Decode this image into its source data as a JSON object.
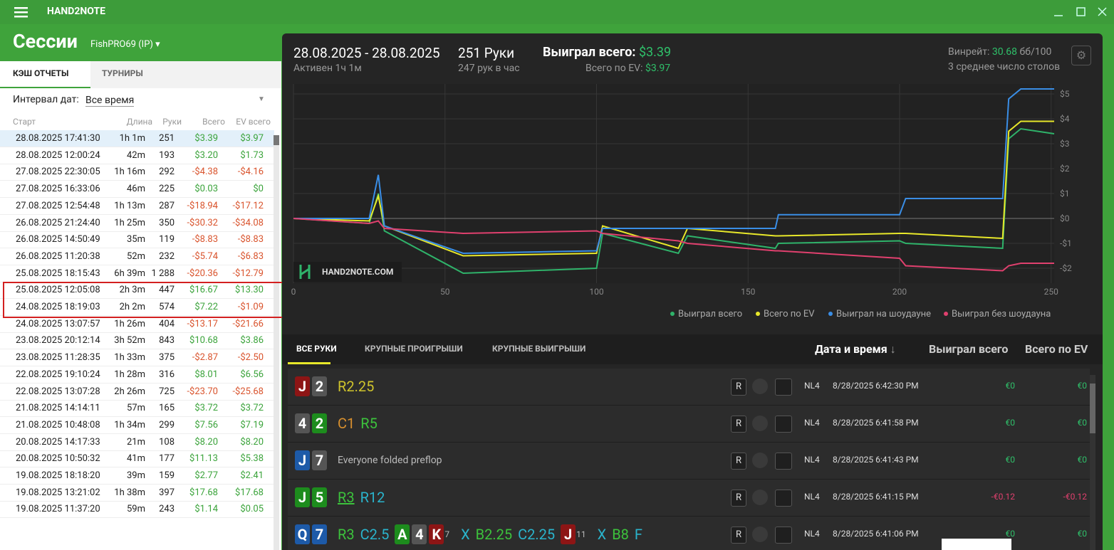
{
  "app": {
    "title": "HAND2NOTE"
  },
  "header": {
    "title": "Сессии",
    "player": "FishPRO69 (IP)"
  },
  "tabs": [
    "КЭШ ОТЧЕТЫ",
    "ТУРНИРЫ"
  ],
  "filter": {
    "label": "Интервал дат:",
    "value": "Все время"
  },
  "sessions": {
    "columns": [
      "Старт",
      "Длина",
      "Руки",
      "Всего",
      "EV всего"
    ],
    "rows": [
      [
        "28.08.2025 17:41:30",
        "1h 1m",
        "251",
        "$3.39",
        "$3.97"
      ],
      [
        "28.08.2025 12:00:24",
        "42m",
        "193",
        "$3.20",
        "$1.73"
      ],
      [
        "27.08.2025 22:30:05",
        "1h 16m",
        "292",
        "-$4.38",
        "-$4.16"
      ],
      [
        "27.08.2025 16:33:06",
        "46m",
        "225",
        "$0.03",
        "$0"
      ],
      [
        "27.08.2025 12:54:48",
        "1h 13m",
        "287",
        "-$18.94",
        "-$17.12"
      ],
      [
        "26.08.2025 21:24:40",
        "1h 25m",
        "350",
        "-$30.32",
        "-$34.08"
      ],
      [
        "26.08.2025 14:50:49",
        "35m",
        "119",
        "-$8.83",
        "-$8.83"
      ],
      [
        "26.08.2025 11:20:38",
        "52m",
        "232",
        "-$5.74",
        "-$6.83"
      ],
      [
        "25.08.2025 18:15:43",
        "6h 39m",
        "1 288",
        "-$20.36",
        "-$12.79"
      ],
      [
        "25.08.2025 12:05:08",
        "2h 3m",
        "447",
        "$16.67",
        "$13.30"
      ],
      [
        "24.08.2025 18:19:03",
        "2h 2m",
        "574",
        "$7.22",
        "-$1.09"
      ],
      [
        "24.08.2025 13:07:57",
        "1h 26m",
        "404",
        "-$13.17",
        "-$21.66"
      ],
      [
        "23.08.2025 20:12:14",
        "3h 52m",
        "843",
        "$10.68",
        "$3.86"
      ],
      [
        "23.08.2025 11:28:35",
        "1h 33m",
        "375",
        "-$2.87",
        "-$2.50"
      ],
      [
        "22.08.2025 19:10:24",
        "1h 28m",
        "316",
        "$8.01",
        "$6.56"
      ],
      [
        "22.08.2025 13:07:28",
        "2h 26m",
        "725",
        "-$23.70",
        "-$25.68"
      ],
      [
        "21.08.2025 14:14:11",
        "57m",
        "165",
        "$3.72",
        "$3.72"
      ],
      [
        "21.08.2025 10:48:08",
        "1h 34m",
        "299",
        "$7.56",
        "$7.19"
      ],
      [
        "20.08.2025 14:17:33",
        "21m",
        "108",
        "$8.20",
        "$8.20"
      ],
      [
        "20.08.2025 10:50:32",
        "41m",
        "177",
        "$11.13",
        "$5.38"
      ],
      [
        "19.08.2025 18:18:20",
        "39m",
        "159",
        "$2.77",
        "$2.41"
      ],
      [
        "19.08.2025 13:21:02",
        "1h 38m",
        "397",
        "$17.68",
        "$17.68"
      ],
      [
        "19.08.2025 11:37:20",
        "59m",
        "243",
        "$1.14",
        "$0.05"
      ]
    ]
  },
  "summary": {
    "dates": "28.08.2025 - 28.08.2025",
    "active": "Активен 1ч 1м",
    "hands": "251 Руки",
    "hands_per_hour": "247 рук в час",
    "won_label": "Выиграл всего:",
    "won": "$3.39",
    "ev_label": "Всего по EV:",
    "ev": "$3.97",
    "winrate_label": "Винрейт:",
    "winrate": "30.68",
    "winrate_unit": "бб/100",
    "tables": "3 среднее число столов"
  },
  "chart": {
    "type": "line",
    "watermark": "HAND2NOTE.COM",
    "x": [
      0,
      25,
      28,
      30,
      56,
      100,
      102,
      127,
      130,
      159,
      160,
      200,
      202,
      234,
      236,
      240,
      251
    ],
    "series": [
      {
        "name": "Выиграл всего",
        "color": "#2fb36a",
        "values": [
          0,
          -0.2,
          1.0,
          -0.5,
          -2.2,
          -2.0,
          -0.6,
          -1.4,
          -0.7,
          -1.2,
          -1.0,
          -0.9,
          -1.0,
          -1.2,
          3.2,
          3.6,
          3.4
        ]
      },
      {
        "name": "Всего по EV",
        "color": "#e8e82a",
        "values": [
          0,
          -0.1,
          0.9,
          -0.3,
          -1.5,
          -1.4,
          -0.3,
          -1.2,
          -0.4,
          -0.7,
          -0.7,
          -0.6,
          -0.6,
          -0.8,
          3.5,
          3.9,
          3.9
        ]
      },
      {
        "name": "Выиграл на шоудауне",
        "color": "#3a8ee6",
        "values": [
          0,
          0,
          1.75,
          -0.3,
          -1.4,
          -1.3,
          -0.4,
          -0.4,
          -0.4,
          -0.4,
          0.15,
          0.15,
          0.8,
          0.8,
          4.8,
          5.2,
          5.2
        ]
      },
      {
        "name": "Выиграл без шоудауна",
        "color": "#e0406e",
        "values": [
          0,
          -0.2,
          -0.1,
          -0.4,
          -0.6,
          -0.5,
          -0.6,
          -0.9,
          -1.0,
          -1.3,
          -1.3,
          -1.6,
          -1.9,
          -2.1,
          -1.9,
          -1.8,
          -1.8
        ]
      }
    ],
    "xlim": [
      0,
      251
    ],
    "xticks": [
      0,
      50,
      100,
      150,
      200,
      250
    ],
    "ylim": [
      -2.6,
      5.4
    ],
    "yticks": [
      {
        "value": -2,
        "label": "-$2"
      },
      {
        "value": -1,
        "label": "-$1"
      },
      {
        "value": 0,
        "label": "$0"
      },
      {
        "value": 1,
        "label": "$1"
      },
      {
        "value": 2,
        "label": "$2"
      },
      {
        "value": 3,
        "label": "$3"
      },
      {
        "value": 4,
        "label": "$4"
      },
      {
        "value": 5,
        "label": "$5"
      }
    ],
    "grid": true
  },
  "hands": {
    "tabs": [
      "ВСЕ РУКИ",
      "КРУПНЫЕ ПРОИГРЫШИ",
      "КРУПНЫЕ ВЫИГРЫШИ"
    ],
    "columns": [
      "Дата и время",
      "Выиграл всего",
      "Всего по EV"
    ],
    "rows": [
      {
        "items": [
          {
            "card": "J",
            "color": "#8d1515"
          },
          {
            "card": "2",
            "color": "#555555"
          },
          {
            "text": "R2.25",
            "color": "#cfc42c"
          }
        ],
        "button": "R",
        "limit": "NL4",
        "time": "8/28/2025 6:42:30 PM",
        "won": "€0",
        "ev": "€0"
      },
      {
        "items": [
          {
            "card": "4",
            "color": "#555555"
          },
          {
            "card": "2",
            "color": "#1d8c1d"
          },
          {
            "text": "C1",
            "color": "#d8902e"
          },
          {
            "text": "R5",
            "color": "#3cc23c"
          }
        ],
        "button": "R",
        "limit": "NL4",
        "time": "8/28/2025 6:41:58 PM",
        "won": "€0",
        "ev": "€0"
      },
      {
        "items": [
          {
            "card": "J",
            "color": "#1d5aa8"
          },
          {
            "card": "7",
            "color": "#555555"
          },
          {
            "text": "Everyone folded preflop",
            "color": "#bbbbbb",
            "small": true
          }
        ],
        "button": "R",
        "limit": "NL4",
        "time": "8/28/2025 6:41:43 PM",
        "won": "€0",
        "ev": "€0"
      },
      {
        "items": [
          {
            "card": "J",
            "color": "#1d8c1d"
          },
          {
            "card": "5",
            "color": "#1d8c1d"
          },
          {
            "text": "R3",
            "color": "#3cc23c",
            "underline": true
          },
          {
            "text": "R12",
            "color": "#2ab4cc"
          }
        ],
        "button": "R",
        "limit": "NL4",
        "time": "8/28/2025 6:41:15 PM",
        "won": "-€0.12",
        "ev": "-€0.12"
      },
      {
        "items": [
          {
            "card": "Q",
            "color": "#1d5aa8"
          },
          {
            "card": "7",
            "color": "#1d5aa8"
          },
          {
            "text": "R3",
            "color": "#3cc23c"
          },
          {
            "text": "C2.5",
            "color": "#2ab4cc"
          },
          {
            "card": "A",
            "color": "#1d8c1d"
          },
          {
            "card": "4",
            "color": "#555555"
          },
          {
            "card": "K",
            "color": "#8d1515"
          },
          {
            "text": "7",
            "color": "#bbbbbb",
            "tiny": true
          },
          {
            "text": "X",
            "color": "#2ab4cc"
          },
          {
            "text": "B2.25",
            "color": "#3cc23c"
          },
          {
            "text": "C2.25",
            "color": "#2ab4cc"
          },
          {
            "card": "J",
            "color": "#8d1515"
          },
          {
            "text": "11",
            "color": "#bbbbbb",
            "tiny": true
          },
          {
            "text": "X",
            "color": "#2ab4cc"
          },
          {
            "text": "B8",
            "color": "#3cc23c"
          },
          {
            "text": "F",
            "color": "#2ab4cc"
          }
        ],
        "button": "R",
        "limit": "NL4",
        "time": "8/28/2025 6:41:06 PM",
        "won": "€0",
        "ev": "€0"
      }
    ]
  }
}
